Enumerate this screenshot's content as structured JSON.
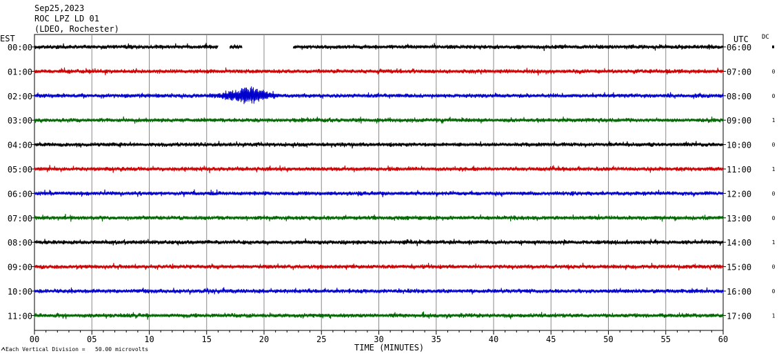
{
  "header": {
    "date": "Sep25,2023",
    "station": "ROC LPZ LD 01",
    "network": "(LDEO, Rochester)"
  },
  "left_axis_title": "EST",
  "right_axis_title": "UTC",
  "dc_title": "DC",
  "footer": {
    "scale_note": "Each Vertical Division =   50.00 microvolts",
    "xlabel": "TIME (MINUTES)"
  },
  "chart_data": {
    "type": "line",
    "title": "",
    "xlabel": "TIME (MINUTES)",
    "ylabel": "",
    "xlim": [
      0,
      60
    ],
    "x_ticks": [
      "00",
      "05",
      "10",
      "15",
      "20",
      "25",
      "30",
      "35",
      "40",
      "45",
      "50",
      "55",
      "60"
    ],
    "grid": true,
    "vertical_division_microvolts": 50.0,
    "rows": [
      {
        "est": "00:00",
        "utc": "06:00",
        "dc": "",
        "color": "#000000",
        "gaps": [
          [
            16.0,
            17.0
          ],
          [
            18.1,
            22.5
          ]
        ]
      },
      {
        "est": "01:00",
        "utc": "07:00",
        "dc": "0",
        "color": "#cc0000"
      },
      {
        "est": "02:00",
        "utc": "08:00",
        "dc": "0",
        "color": "#0000cc",
        "event": {
          "start_min": 14.5,
          "peak_min": 18.8,
          "end_min": 22.0
        }
      },
      {
        "est": "03:00",
        "utc": "09:00",
        "dc": "1",
        "color": "#006600"
      },
      {
        "est": "04:00",
        "utc": "10:00",
        "dc": "0",
        "color": "#000000"
      },
      {
        "est": "05:00",
        "utc": "11:00",
        "dc": "1",
        "color": "#cc0000"
      },
      {
        "est": "06:00",
        "utc": "12:00",
        "dc": "0",
        "color": "#0000cc"
      },
      {
        "est": "07:00",
        "utc": "13:00",
        "dc": "0",
        "color": "#006600"
      },
      {
        "est": "08:00",
        "utc": "14:00",
        "dc": "1",
        "color": "#000000"
      },
      {
        "est": "09:00",
        "utc": "15:00",
        "dc": "0",
        "color": "#cc0000"
      },
      {
        "est": "10:00",
        "utc": "16:00",
        "dc": "0",
        "color": "#0000cc"
      },
      {
        "est": "11:00",
        "utc": "17:00",
        "dc": "1",
        "color": "#006600"
      }
    ]
  }
}
